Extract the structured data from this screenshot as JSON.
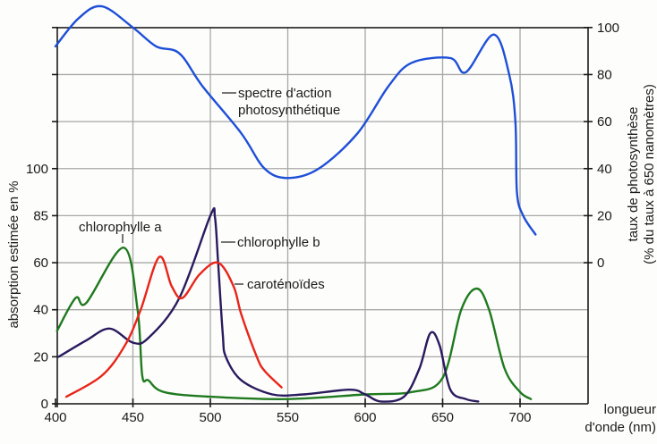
{
  "chart_data": {
    "type": "line",
    "title": "",
    "xlabel": "longueur d'onde (nm)",
    "xlabel_lines": [
      "longueur",
      "d'onde (nm)"
    ],
    "ylabel_left": "absorption estimée en %",
    "ylabel_right_lines": [
      "taux de photosynthèse",
      "(% du taux à 650 nanomètres)"
    ],
    "xlim": [
      400,
      710
    ],
    "x_ticks": [
      400,
      450,
      500,
      550,
      600,
      650,
      700
    ],
    "y_left_tick_labels": [
      "0",
      "20",
      "40",
      "60",
      "85",
      "100"
    ],
    "y_right_ticks": [
      0,
      20,
      40,
      60,
      80,
      100
    ],
    "grid": true,
    "series": [
      {
        "name": "chlorophylle a",
        "axis": "left",
        "color": "#1f7a1f",
        "points": [
          [
            401,
            31
          ],
          [
            413,
            45
          ],
          [
            420,
            43
          ],
          [
            444,
            68
          ],
          [
            453,
            40
          ],
          [
            456,
            12
          ],
          [
            460,
            10
          ],
          [
            470,
            5
          ],
          [
            500,
            3
          ],
          [
            550,
            2
          ],
          [
            600,
            4
          ],
          [
            630,
            5
          ],
          [
            650,
            11
          ],
          [
            662,
            40
          ],
          [
            672,
            49
          ],
          [
            680,
            40
          ],
          [
            690,
            15
          ],
          [
            700,
            5
          ],
          [
            707,
            2
          ]
        ]
      },
      {
        "name": "chlorophylle b",
        "axis": "left",
        "color": "#2a1a5e",
        "points": [
          [
            402,
            20
          ],
          [
            420,
            27
          ],
          [
            435,
            32
          ],
          [
            450,
            26
          ],
          [
            460,
            28
          ],
          [
            480,
            45
          ],
          [
            500,
            85
          ],
          [
            503,
            84
          ],
          [
            505,
            60
          ],
          [
            508,
            30
          ],
          [
            510,
            20
          ],
          [
            520,
            10
          ],
          [
            540,
            4
          ],
          [
            560,
            4
          ],
          [
            590,
            6
          ],
          [
            600,
            4
          ],
          [
            610,
            1
          ],
          [
            625,
            3
          ],
          [
            635,
            15
          ],
          [
            642,
            30
          ],
          [
            648,
            25
          ],
          [
            655,
            6
          ],
          [
            665,
            2
          ],
          [
            673,
            1
          ]
        ]
      },
      {
        "name": "caroténoïdes",
        "axis": "left",
        "color": "#e8251a",
        "points": [
          [
            407,
            3
          ],
          [
            430,
            12
          ],
          [
            445,
            25
          ],
          [
            455,
            40
          ],
          [
            467,
            63
          ],
          [
            475,
            50
          ],
          [
            482,
            45
          ],
          [
            493,
            55
          ],
          [
            505,
            60
          ],
          [
            515,
            50
          ],
          [
            520,
            38
          ],
          [
            530,
            20
          ],
          [
            535,
            14
          ],
          [
            546,
            7
          ]
        ]
      },
      {
        "name": "spectre d'action photosynthétique",
        "axis": "right",
        "color": "#1e4fd8",
        "points": [
          [
            400,
            92
          ],
          [
            415,
            104
          ],
          [
            430,
            109
          ],
          [
            450,
            100
          ],
          [
            465,
            92
          ],
          [
            480,
            89
          ],
          [
            495,
            75
          ],
          [
            520,
            55
          ],
          [
            535,
            40
          ],
          [
            550,
            36
          ],
          [
            570,
            40
          ],
          [
            595,
            55
          ],
          [
            615,
            75
          ],
          [
            630,
            85
          ],
          [
            655,
            87
          ],
          [
            665,
            81
          ],
          [
            683,
            97
          ],
          [
            693,
            80
          ],
          [
            697,
            60
          ],
          [
            698,
            30
          ],
          [
            702,
            20
          ],
          [
            710,
            12
          ]
        ]
      }
    ],
    "annotations": [
      {
        "text": "chlorophylle a"
      },
      {
        "text": "chlorophylle b"
      },
      {
        "text": "caroténoïdes"
      },
      {
        "text_lines": [
          "spectre d'action",
          "photosynthétique"
        ]
      }
    ]
  },
  "labels": {
    "chl_a": "chlorophylle a",
    "chl_b": "chlorophylle b",
    "carot": "caroténoïdes",
    "action_1": "spectre d'action",
    "action_2": "photosynthétique",
    "x_title_1": "longueur",
    "x_title_2": "d'onde (nm)",
    "y_left_title": "absorption estimée en %",
    "y_right_title_1": "taux de photosynthèse",
    "y_right_title_2": "(% du taux à 650 nanomètres)"
  }
}
